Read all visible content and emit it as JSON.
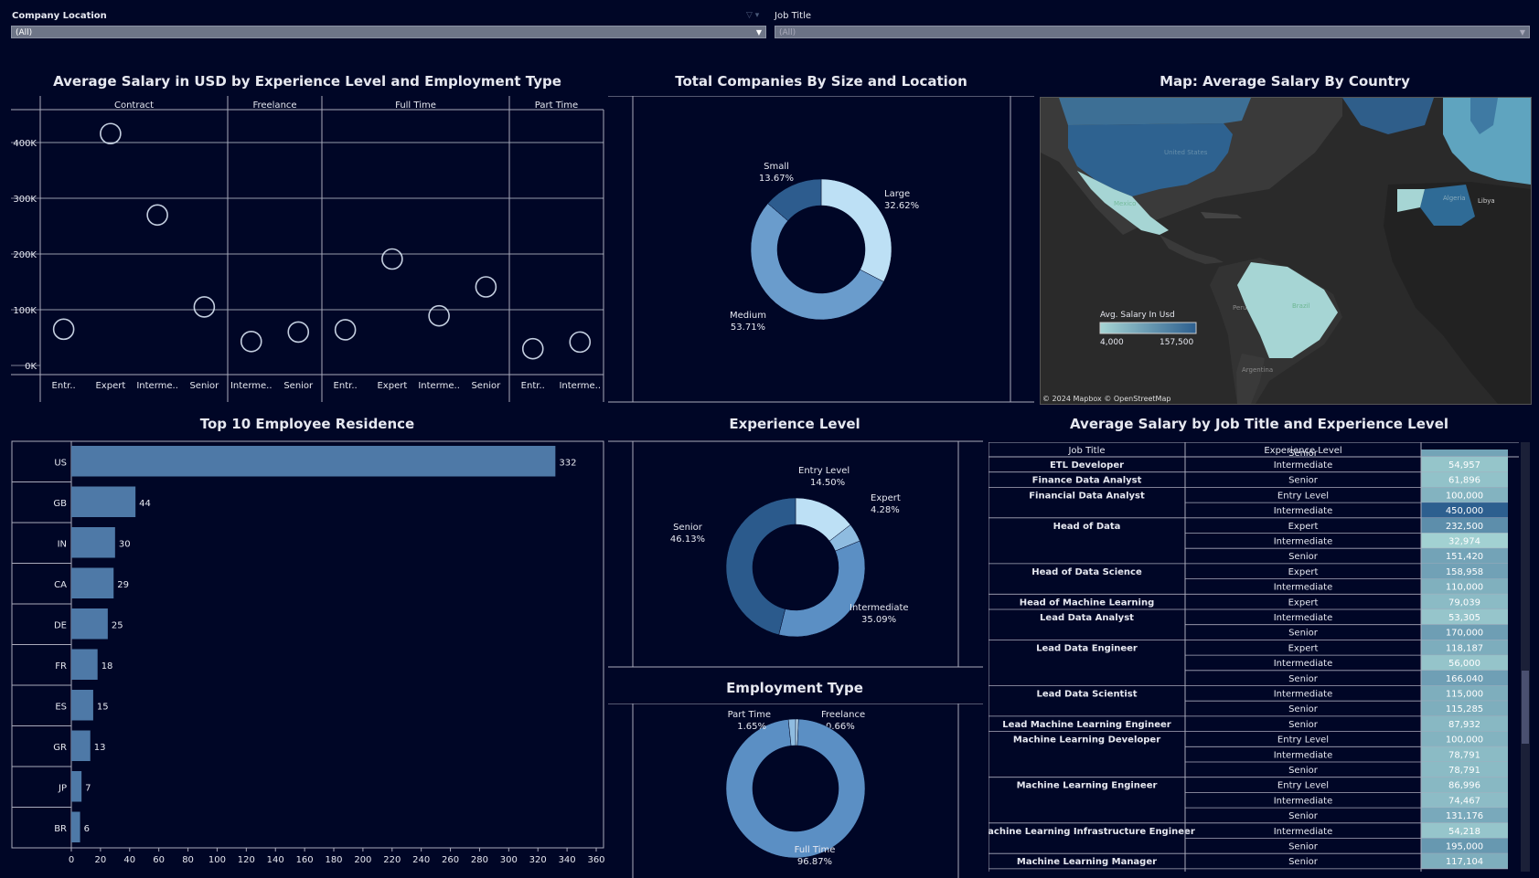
{
  "filters": {
    "company_location": {
      "label": "Company Location",
      "value": "(All)"
    },
    "job_title": {
      "label": "Job Title",
      "value": "(All)"
    }
  },
  "scatter_panel": {
    "title": "Average Salary in USD by Experience Level and Employment Type",
    "chart_data": {
      "type": "scatter",
      "groups": [
        {
          "name": "Contract",
          "categories": [
            "Entr..",
            "Expert",
            "Interme..",
            "Senior"
          ],
          "values": [
            65000,
            416000,
            270000,
            105000
          ]
        },
        {
          "name": "Freelance",
          "categories": [
            "Interme..",
            "Senior"
          ],
          "values": [
            43000,
            60000
          ]
        },
        {
          "name": "Full Time",
          "categories": [
            "Entr..",
            "Expert",
            "Interme..",
            "Senior"
          ],
          "values": [
            64000,
            191000,
            89000,
            141000
          ]
        },
        {
          "name": "Part Time",
          "categories": [
            "Entr..",
            "Interme.."
          ],
          "values": [
            30000,
            42000
          ]
        }
      ],
      "y_ticks": [
        "0K",
        "100K",
        "200K",
        "300K",
        "400K"
      ],
      "ylim": [
        0,
        450000
      ]
    }
  },
  "company_size_panel": {
    "title": "Total Companies By Size and Location",
    "chart_data": {
      "type": "pie",
      "slices": [
        {
          "label": "Large",
          "pct": "32.62%",
          "value": 32.62,
          "color": "#bde0f5"
        },
        {
          "label": "Medium",
          "pct": "53.71%",
          "value": 53.71,
          "color": "#6a9ccc"
        },
        {
          "label": "Small",
          "pct": "13.67%",
          "value": 13.67,
          "color": "#2d5c8e"
        }
      ]
    }
  },
  "map_panel": {
    "title": "Map: Average Salary By Country",
    "legend_title": "Avg. Salary In Usd",
    "legend_min": "4,000",
    "legend_max": "157,500",
    "attribution": "© 2024 Mapbox  © OpenStreetMap",
    "labels": {
      "us": "United States",
      "mx": "Mexico",
      "br": "Brazil",
      "pe": "Peru",
      "ar": "Argentina",
      "dz": "Algeria",
      "ly": "Libya"
    },
    "colors": {
      "low": "#a6d5d4",
      "high": "#2d5f8f"
    }
  },
  "residence_panel": {
    "title": "Top 10 Employee Residence",
    "chart_data": {
      "type": "bar",
      "categories": [
        "US",
        "GB",
        "IN",
        "CA",
        "DE",
        "FR",
        "ES",
        "GR",
        "JP",
        "BR"
      ],
      "values": [
        332,
        44,
        30,
        29,
        25,
        18,
        15,
        13,
        7,
        6
      ],
      "x_ticks": [
        0,
        20,
        40,
        60,
        80,
        100,
        120,
        140,
        160,
        180,
        200,
        220,
        240,
        260,
        280,
        300,
        320,
        340,
        360
      ],
      "xlim": [
        0,
        360
      ]
    }
  },
  "experience_panel": {
    "title": "Experience Level",
    "chart_data": {
      "type": "pie",
      "slices": [
        {
          "label": "Entry Level",
          "pct": "14.50%",
          "value": 14.5,
          "color": "#bde0f5"
        },
        {
          "label": "Expert",
          "pct": "4.28%",
          "value": 4.28,
          "color": "#8fbce0"
        },
        {
          "label": "Intermediate",
          "pct": "35.09%",
          "value": 35.09,
          "color": "#5b8fc4"
        },
        {
          "label": "Senior",
          "pct": "46.13%",
          "value": 46.13,
          "color": "#2b5a8c"
        }
      ]
    }
  },
  "employment_panel": {
    "title": "Employment Type",
    "chart_data": {
      "type": "pie",
      "slices": [
        {
          "label": "Freelance",
          "pct": "0.66%",
          "value": 0.66,
          "color": "#bde0f5"
        },
        {
          "label": "Full Time",
          "pct": "96.87%",
          "value": 96.87,
          "color": "#5b8fc4"
        },
        {
          "label": "Part Time",
          "pct": "1.65%",
          "value": 1.65,
          "color": "#8fbce0"
        }
      ]
    }
  },
  "salary_table": {
    "title": "Average Salary by Job Title and Experience Level",
    "headers": {
      "job": "Job Title",
      "exp": "Experience Level"
    },
    "partial_top": {
      "exp": "Senior"
    },
    "groups": [
      {
        "title": "ETL Developer",
        "rows": [
          {
            "exp": "Intermediate",
            "val": "54,957",
            "n": 54957
          }
        ]
      },
      {
        "title": "Finance Data Analyst",
        "rows": [
          {
            "exp": "Senior",
            "val": "61,896",
            "n": 61896
          }
        ]
      },
      {
        "title": "Financial Data Analyst",
        "rows": [
          {
            "exp": "Entry Level",
            "val": "100,000",
            "n": 100000
          },
          {
            "exp": "Intermediate",
            "val": "450,000",
            "n": 450000
          }
        ]
      },
      {
        "title": "Head of Data",
        "rows": [
          {
            "exp": "Expert",
            "val": "232,500",
            "n": 232500
          },
          {
            "exp": "Intermediate",
            "val": "32,974",
            "n": 32974
          },
          {
            "exp": "Senior",
            "val": "151,420",
            "n": 151420
          }
        ]
      },
      {
        "title": "Head of Data Science",
        "rows": [
          {
            "exp": "Expert",
            "val": "158,958",
            "n": 158958
          },
          {
            "exp": "Intermediate",
            "val": "110,000",
            "n": 110000
          }
        ]
      },
      {
        "title": "Head of Machine Learning",
        "rows": [
          {
            "exp": "Expert",
            "val": "79,039",
            "n": 79039
          }
        ]
      },
      {
        "title": "Lead Data Analyst",
        "rows": [
          {
            "exp": "Intermediate",
            "val": "53,305",
            "n": 53305
          },
          {
            "exp": "Senior",
            "val": "170,000",
            "n": 170000
          }
        ]
      },
      {
        "title": "Lead Data Engineer",
        "rows": [
          {
            "exp": "Expert",
            "val": "118,187",
            "n": 118187
          },
          {
            "exp": "Intermediate",
            "val": "56,000",
            "n": 56000
          },
          {
            "exp": "Senior",
            "val": "166,040",
            "n": 166040
          }
        ]
      },
      {
        "title": "Lead Data Scientist",
        "rows": [
          {
            "exp": "Intermediate",
            "val": "115,000",
            "n": 115000
          },
          {
            "exp": "Senior",
            "val": "115,285",
            "n": 115285
          }
        ]
      },
      {
        "title": "Lead Machine Learning Engineer",
        "rows": [
          {
            "exp": "Senior",
            "val": "87,932",
            "n": 87932
          }
        ]
      },
      {
        "title": "Machine Learning Developer",
        "rows": [
          {
            "exp": "Entry Level",
            "val": "100,000",
            "n": 100000
          },
          {
            "exp": "Intermediate",
            "val": "78,791",
            "n": 78791
          },
          {
            "exp": "Senior",
            "val": "78,791",
            "n": 78791
          }
        ]
      },
      {
        "title": "Machine Learning Engineer",
        "rows": [
          {
            "exp": "Entry Level",
            "val": "86,996",
            "n": 86996
          },
          {
            "exp": "Intermediate",
            "val": "74,467",
            "n": 74467
          },
          {
            "exp": "Senior",
            "val": "131,176",
            "n": 131176
          }
        ]
      },
      {
        "title": "Machine Learning Infrastructure Engineer",
        "rows": [
          {
            "exp": "Intermediate",
            "val": "54,218",
            "n": 54218
          },
          {
            "exp": "Senior",
            "val": "195,000",
            "n": 195000
          }
        ]
      },
      {
        "title": "Machine Learning Manager",
        "rows": [
          {
            "exp": "Senior",
            "val": "117,104",
            "n": 117104
          }
        ]
      }
    ]
  }
}
